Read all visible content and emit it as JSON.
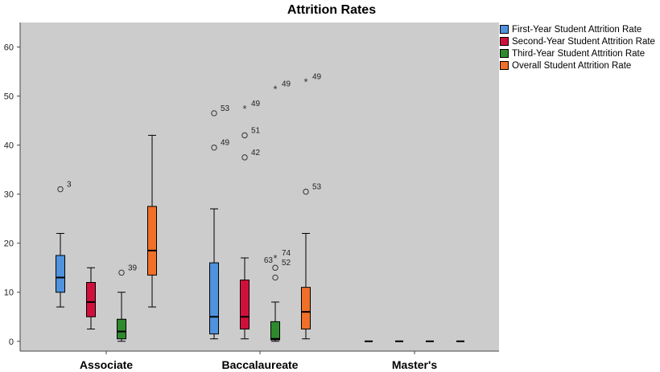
{
  "chart_data": {
    "type": "boxplot",
    "title": "Attrition Rates",
    "categories": [
      "Associate",
      "Baccalaureate",
      "Master's"
    ],
    "ylim": [
      -2,
      65
    ],
    "yticks": [
      0,
      10,
      20,
      30,
      40,
      50,
      60
    ],
    "grid": false,
    "legend_position": "right",
    "series": [
      {
        "name": "First-Year Student Attrition Rate",
        "color": "#4f93de",
        "boxes": [
          {
            "min": 7,
            "q1": 10,
            "median": 13,
            "q3": 17.5,
            "max": 22
          },
          {
            "min": 0.5,
            "q1": 1.5,
            "median": 5,
            "q3": 16,
            "max": 27
          },
          {
            "min": 0,
            "q1": 0,
            "median": 0,
            "q3": 0,
            "max": 0
          }
        ],
        "outliers": [
          {
            "category": 0,
            "value": 31,
            "label": "3",
            "marker": "circle"
          },
          {
            "category": 1,
            "value": 46.5,
            "label": "53",
            "marker": "circle"
          },
          {
            "category": 1,
            "value": 39.5,
            "label": "49",
            "marker": "circle"
          }
        ]
      },
      {
        "name": "Second-Year Student Attrition Rate",
        "color": "#d0103c",
        "boxes": [
          {
            "min": 2.5,
            "q1": 5,
            "median": 8,
            "q3": 12,
            "max": 15
          },
          {
            "min": 0.5,
            "q1": 2.5,
            "median": 5,
            "q3": 12.5,
            "max": 17
          },
          {
            "min": 0,
            "q1": 0,
            "median": 0,
            "q3": 0,
            "max": 0
          }
        ],
        "outliers": [
          {
            "category": 1,
            "value": 47.5,
            "label": "49",
            "marker": "star"
          },
          {
            "category": 1,
            "value": 42,
            "label": "51",
            "marker": "circle"
          },
          {
            "category": 1,
            "value": 37.5,
            "label": "42",
            "marker": "circle"
          }
        ]
      },
      {
        "name": "Third-Year Student Attrition Rate",
        "color": "#2f8a2e",
        "boxes": [
          {
            "min": 0,
            "q1": 0.5,
            "median": 2,
            "q3": 4.5,
            "max": 10
          },
          {
            "min": 0,
            "q1": 0.3,
            "median": 0.5,
            "q3": 4,
            "max": 8
          },
          {
            "min": 0,
            "q1": 0,
            "median": 0,
            "q3": 0,
            "max": 0
          }
        ],
        "outliers": [
          {
            "category": 0,
            "value": 14,
            "label": "39",
            "marker": "circle"
          },
          {
            "category": 1,
            "value": 51.5,
            "label": "49",
            "marker": "star"
          },
          {
            "category": 1,
            "value": 17,
            "label": "74",
            "marker": "star"
          },
          {
            "category": 1,
            "value": 15,
            "label": "52",
            "marker": "circle"
          },
          {
            "category": 1,
            "value": 13,
            "label": "",
            "marker": "circle"
          }
        ],
        "extra_labels": [
          {
            "category": 1,
            "value": 16.5,
            "label": "63"
          }
        ]
      },
      {
        "name": "Overall Student Attrition Rate",
        "color": "#f0702a",
        "boxes": [
          {
            "min": 7,
            "q1": 13.5,
            "median": 18.5,
            "q3": 27.5,
            "max": 42
          },
          {
            "min": 0.5,
            "q1": 2.5,
            "median": 6,
            "q3": 11,
            "max": 22
          },
          {
            "min": 0,
            "q1": 0,
            "median": 0,
            "q3": 0,
            "max": 0
          }
        ],
        "outliers": [
          {
            "category": 1,
            "value": 53,
            "label": "49",
            "marker": "star"
          },
          {
            "category": 1,
            "value": 30.5,
            "label": "53",
            "marker": "circle"
          }
        ]
      }
    ]
  }
}
